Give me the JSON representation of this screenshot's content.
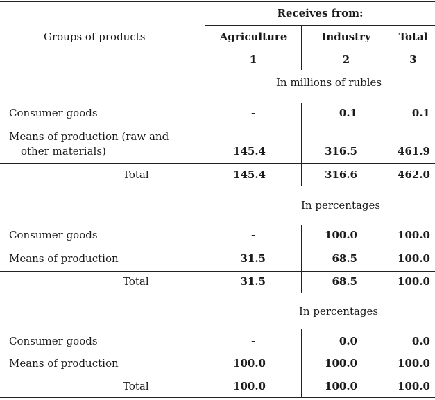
{
  "header": {
    "group_label": "Groups of products",
    "receives_from": "Receives from:",
    "columns": [
      "Agriculture",
      "Industry",
      "Total"
    ],
    "column_numbers": [
      "1",
      "2",
      "3"
    ]
  },
  "sections": [
    {
      "unit": "In millions of rubles",
      "rows": [
        {
          "label": "Consumer goods",
          "values": [
            "-",
            "0.1",
            "0.1"
          ]
        },
        {
          "label_line1": "Means of production (raw and",
          "label_line2": "other materials)",
          "values": [
            "145.4",
            "316.5",
            "461.9"
          ]
        }
      ],
      "total": {
        "label": "Total",
        "values": [
          "145.4",
          "316.6",
          "462.0"
        ]
      }
    },
    {
      "unit": "In percentages",
      "rows": [
        {
          "label": "Consumer goods",
          "values": [
            "-",
            "100.0",
            "100.0"
          ]
        },
        {
          "label": "Means of production",
          "values": [
            "31.5",
            "68.5",
            "100.0"
          ]
        }
      ],
      "total": {
        "label": "Total",
        "values": [
          "31.5",
          "68.5",
          "100.0"
        ]
      }
    },
    {
      "unit": "In percentages",
      "rows": [
        {
          "label": "Consumer goods",
          "values": [
            "-",
            "0.0",
            "0.0"
          ]
        },
        {
          "label": "Means of production",
          "values": [
            "100.0",
            "100.0",
            "100.0"
          ]
        }
      ],
      "total": {
        "label": "Total",
        "values": [
          "100.0",
          "100.0",
          "100.0"
        ]
      }
    }
  ]
}
